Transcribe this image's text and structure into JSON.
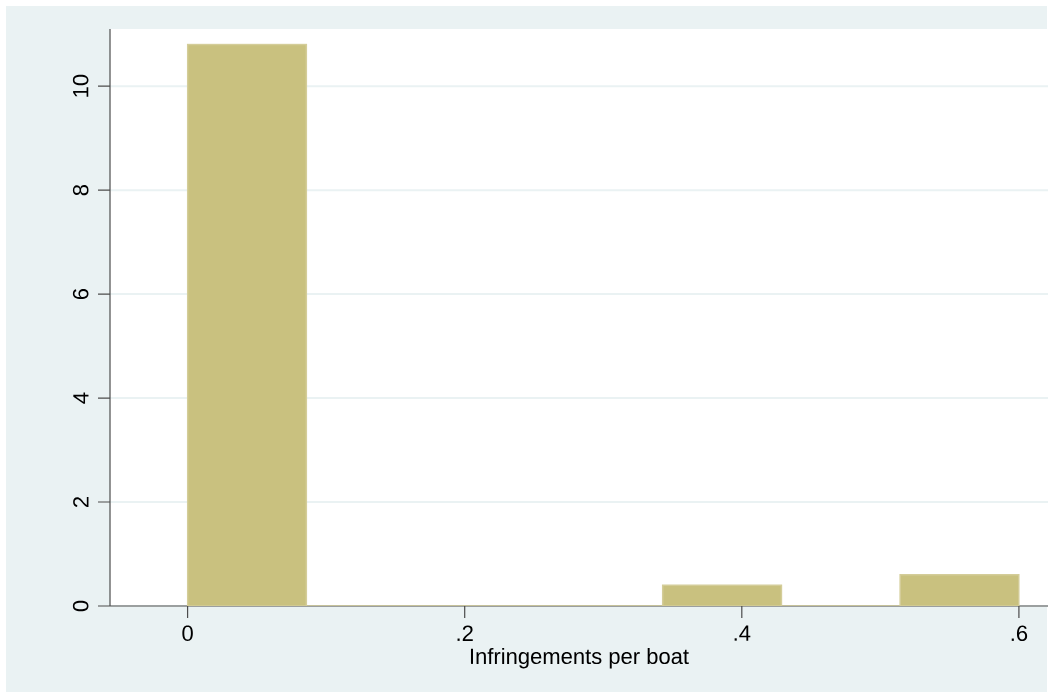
{
  "chart_data": {
    "type": "histogram",
    "xlabel": "Infringements per boat",
    "bins": [
      0,
      0.0857,
      0.1714,
      0.2571,
      0.3429,
      0.4286,
      0.5143,
      0.6
    ],
    "values": [
      10.8,
      0,
      0,
      0,
      0.4,
      0,
      0.6
    ],
    "color": "#c9c17f",
    "xlim": [
      -0.056,
      0.621
    ],
    "ylim": [
      0,
      11.1
    ],
    "xticks": [
      {
        "value": 0,
        "label": "0"
      },
      {
        "value": 0.2,
        "label": ".2"
      },
      {
        "value": 0.4,
        "label": ".4"
      },
      {
        "value": 0.6,
        "label": ".6"
      }
    ],
    "yticks": [
      0,
      2,
      4,
      6,
      8,
      10
    ],
    "grid": "y"
  }
}
